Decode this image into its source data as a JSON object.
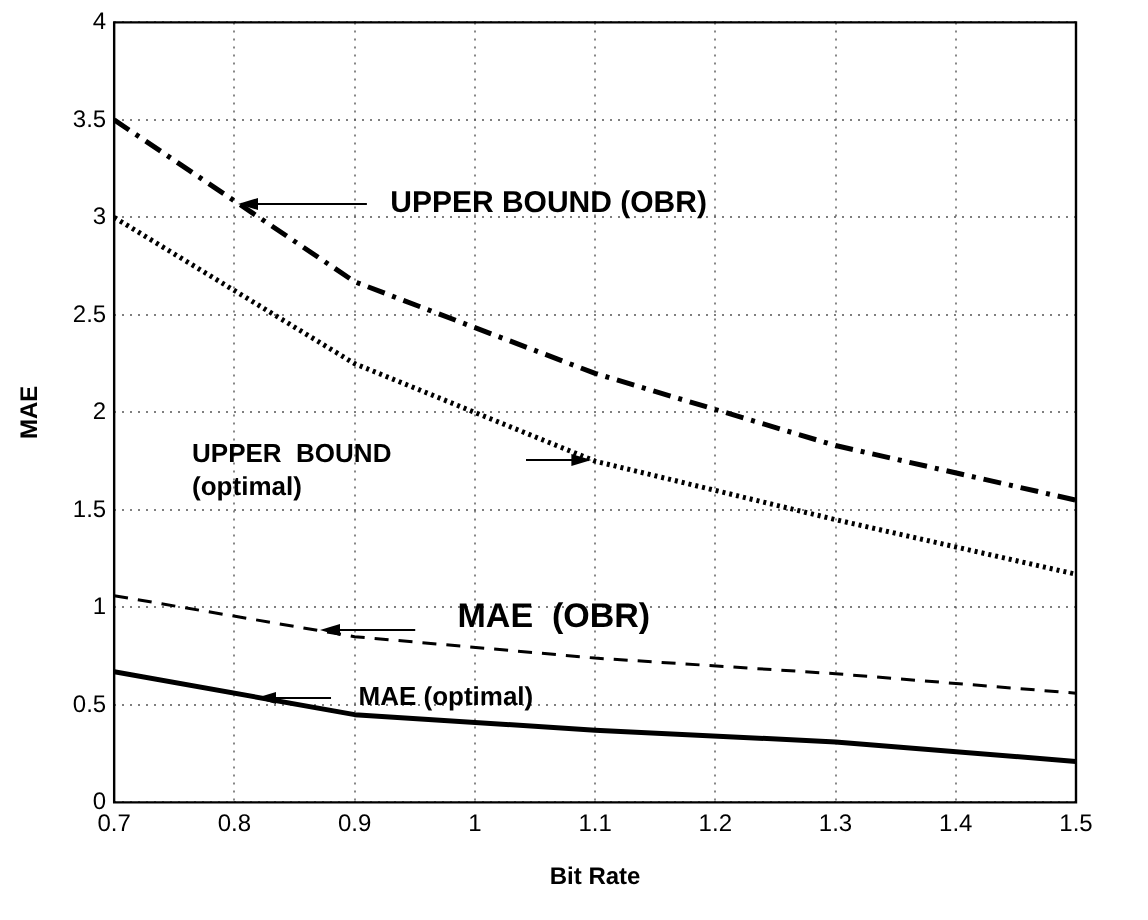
{
  "chart_data": {
    "type": "line",
    "xlabel": "Bit Rate",
    "ylabel": "MAE",
    "x": [
      0.7,
      0.9,
      1.1,
      1.3,
      1.5
    ],
    "series": [
      {
        "color": "#000000",
        "line_style": "dashdot",
        "values": [
          3.5,
          2.67,
          2.2,
          1.83,
          1.55
        ]
      },
      {
        "color": "#000000",
        "line_style": "dotted",
        "values": [
          3.0,
          2.25,
          1.75,
          1.45,
          1.17
        ]
      },
      {
        "color": "#000000",
        "line_style": "dashed",
        "values": [
          1.06,
          0.85,
          0.74,
          0.66,
          0.56
        ]
      },
      {
        "color": "#000000",
        "line_style": "solid",
        "values": [
          0.67,
          0.45,
          0.37,
          0.31,
          0.21
        ]
      }
    ],
    "annotations": [
      "UPPER BOUND (OBR)",
      "UPPER  BOUND\n(optimal)",
      "MAE  (OBR)",
      "MAE (optimal)"
    ],
    "xlim": [
      0.7,
      1.5
    ],
    "xticks": [
      0.7,
      0.8,
      0.9,
      1,
      1.1,
      1.2,
      1.3,
      1.4,
      1.5
    ],
    "ylim": [
      0,
      4
    ],
    "yticks": [
      0,
      0.5,
      1,
      1.5,
      2,
      2.5,
      3,
      3.5,
      4
    ],
    "grid": true,
    "legend": false,
    "marker": "none"
  }
}
